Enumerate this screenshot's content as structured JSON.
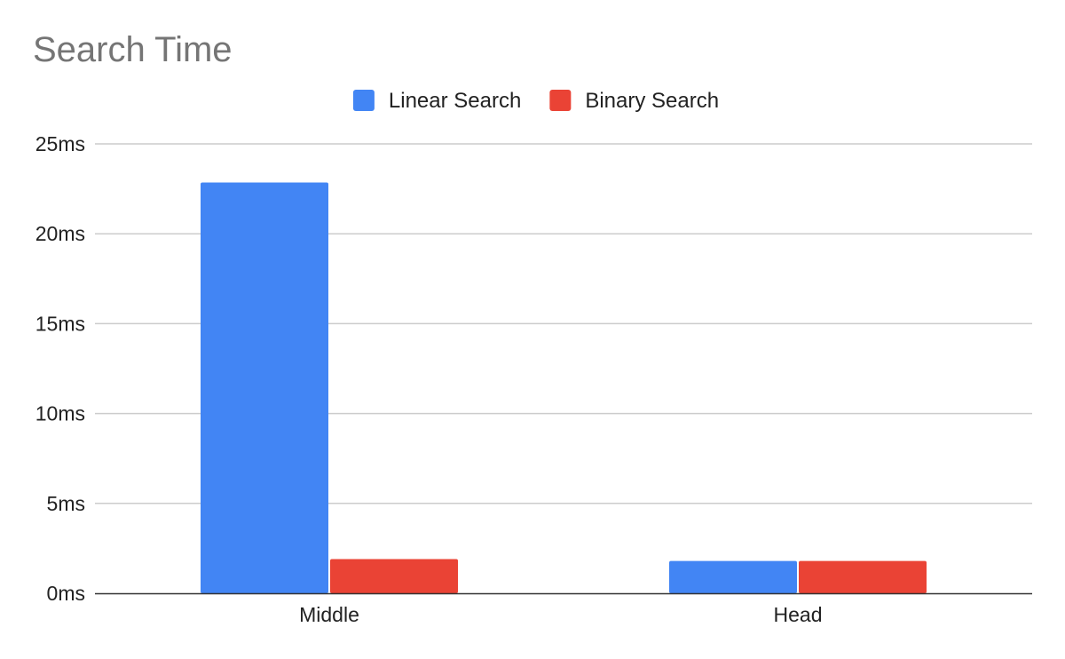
{
  "chart_data": {
    "type": "bar",
    "title": "Search Time",
    "xlabel": "",
    "ylabel": "",
    "categories": [
      "Middle",
      "Head"
    ],
    "series": [
      {
        "name": "Linear Search",
        "color": "#4285f4",
        "values": [
          22.85,
          1.8
        ]
      },
      {
        "name": "Binary Search",
        "color": "#ea4335",
        "values": [
          1.9,
          1.8
        ]
      }
    ],
    "ylim": [
      0,
      25
    ],
    "yticks": [
      0,
      5,
      10,
      15,
      20,
      25
    ],
    "ytick_labels": [
      "0ms",
      "5ms",
      "10ms",
      "15ms",
      "20ms",
      "25ms"
    ],
    "grid": true,
    "legend_position": "top"
  }
}
